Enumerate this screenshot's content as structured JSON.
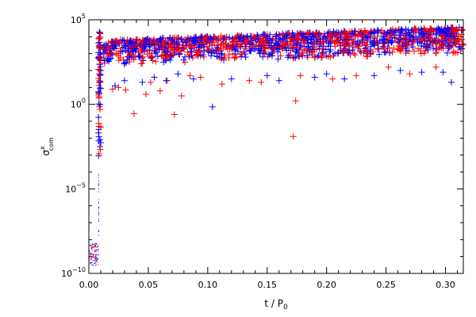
{
  "chart_data": {
    "type": "scatter",
    "title": "",
    "xlabel": "t / P",
    "xlabel_sub": "0",
    "ylabel": "σ",
    "ylabel_sup": "x",
    "ylabel_sub": "com",
    "xlim": [
      0.0,
      0.315
    ],
    "ylim_log10": [
      -10.0,
      5.0
    ],
    "y_scale": "log",
    "grid": false,
    "legend": "none",
    "x_ticks": [
      {
        "value": 0.0,
        "label": "0.00"
      },
      {
        "value": 0.05,
        "label": "0.05"
      },
      {
        "value": 0.1,
        "label": "0.10"
      },
      {
        "value": 0.15,
        "label": "0.15"
      },
      {
        "value": 0.2,
        "label": "0.20"
      },
      {
        "value": 0.25,
        "label": "0.25"
      },
      {
        "value": 0.3,
        "label": "0.30"
      }
    ],
    "y_ticks": [
      {
        "exp": -10,
        "base": "10",
        "power": "−10"
      },
      {
        "exp": -5,
        "base": "10",
        "power": "−5"
      },
      {
        "exp": 0,
        "base": "10",
        "power": "0"
      },
      {
        "exp": 5,
        "base": "10",
        "power": "5"
      }
    ],
    "series": [
      {
        "color": "#ff0000",
        "marker": "+",
        "points_log10": [
          [
            0.038,
            -0.55
          ],
          [
            0.048,
            0.6
          ],
          [
            0.052,
            1.3
          ],
          [
            0.06,
            0.8
          ],
          [
            0.066,
            1.4
          ],
          [
            0.072,
            -0.6
          ],
          [
            0.078,
            0.5
          ],
          [
            0.085,
            1.7
          ],
          [
            0.094,
            1.6
          ],
          [
            0.112,
            1.2
          ],
          [
            0.135,
            1.4
          ],
          [
            0.145,
            1.3
          ],
          [
            0.172,
            -1.9
          ],
          [
            0.174,
            0.2
          ],
          [
            0.178,
            1.7
          ],
          [
            0.205,
            1.5
          ],
          [
            0.225,
            1.7
          ],
          [
            0.252,
            2.2
          ],
          [
            0.27,
            1.8
          ],
          [
            0.292,
            2.2
          ],
          [
            0.02,
            0.9
          ],
          [
            0.025,
            1.0
          ],
          [
            0.031,
            0.85
          ]
        ]
      },
      {
        "color": "#0000ff",
        "marker": "+",
        "points_log10": [
          [
            0.045,
            1.3
          ],
          [
            0.055,
            1.6
          ],
          [
            0.065,
            1.4
          ],
          [
            0.075,
            1.8
          ],
          [
            0.088,
            1.5
          ],
          [
            0.104,
            -0.15
          ],
          [
            0.12,
            1.5
          ],
          [
            0.15,
            1.7
          ],
          [
            0.16,
            1.4
          ],
          [
            0.19,
            1.6
          ],
          [
            0.2,
            1.8
          ],
          [
            0.215,
            1.5
          ],
          [
            0.24,
            1.7
          ],
          [
            0.262,
            2.0
          ],
          [
            0.28,
            1.9
          ],
          [
            0.298,
            1.9
          ],
          [
            0.305,
            1.3
          ],
          [
            0.022,
            1.1
          ],
          [
            0.03,
            1.4
          ]
        ]
      }
    ],
    "bulk_band_log10": {
      "x_start": 0.012,
      "x_end": 0.315,
      "y_low_start": 2.3,
      "y_low_end": 3.0,
      "y_high_start": 3.8,
      "y_high_end": 4.6
    },
    "early_spike": {
      "x": 0.009,
      "y_min_log10": -4.0,
      "y_max_log10": 4.3
    },
    "initial_cluster": {
      "x_min": 0.0,
      "x_max": 0.008,
      "y_min_log10": -9.5,
      "y_max_log10": -8.2
    }
  }
}
